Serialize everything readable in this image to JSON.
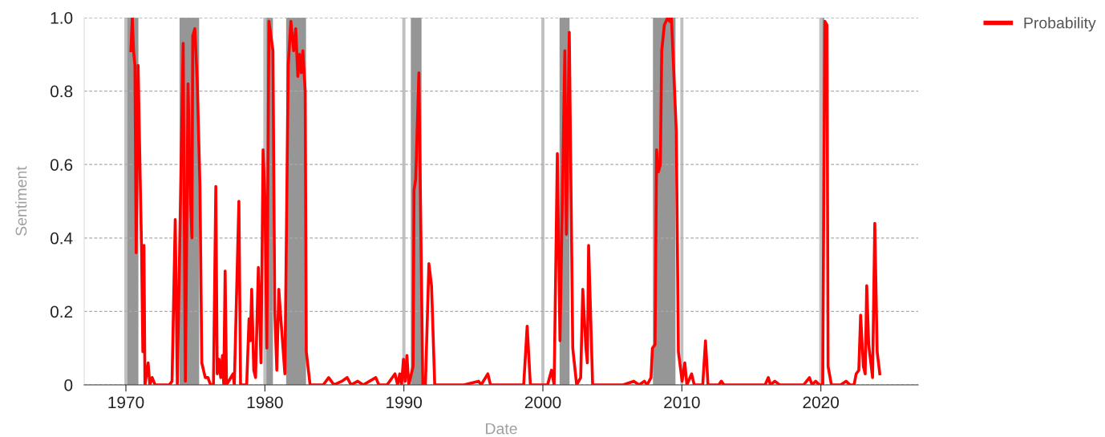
{
  "chart_data": {
    "type": "line",
    "xlabel": "Date",
    "ylabel": "Sentiment",
    "x": [
      1970.36,
      1970.46,
      1970.55,
      1970.65,
      1970.74,
      1970.88,
      1970.99,
      1971.13,
      1971.22,
      1971.3,
      1971.37,
      1971.6,
      1971.72,
      1971.89,
      1972.1,
      1973.13,
      1973.32,
      1973.55,
      1973.7,
      1974.12,
      1974.28,
      1974.47,
      1974.62,
      1974.75,
      1974.81,
      1974.96,
      1975.13,
      1975.33,
      1975.46,
      1975.71,
      1975.9,
      1976.09,
      1976.3,
      1976.47,
      1976.57,
      1976.7,
      1976.82,
      1976.95,
      1977.04,
      1977.14,
      1977.24,
      1977.71,
      1977.8,
      1978.13,
      1978.25,
      1978.5,
      1978.69,
      1978.86,
      1978.95,
      1979.05,
      1979.2,
      1979.33,
      1979.53,
      1979.72,
      1979.87,
      1980.0,
      1980.14,
      1980.29,
      1980.58,
      1980.71,
      1980.86,
      1981.0,
      1981.11,
      1981.44,
      1981.68,
      1981.87,
      1982.07,
      1982.22,
      1982.37,
      1982.49,
      1982.62,
      1982.73,
      1982.9,
      1982.98,
      1983.25,
      1983.73,
      1984.2,
      1984.59,
      1984.97,
      1985.54,
      1985.92,
      1986.2,
      1986.68,
      1987.07,
      1987.98,
      1988.2,
      1988.79,
      1989.36,
      1989.55,
      1989.7,
      1989.83,
      1989.97,
      1990.09,
      1990.22,
      1990.35,
      1990.66,
      1990.73,
      1990.85,
      1991.08,
      1991.36,
      1991.55,
      1991.8,
      1991.99,
      1992.22,
      1992.8,
      1993.56,
      1994.32,
      1995.37,
      1995.56,
      1996.04,
      1996.23,
      1997.95,
      1998.62,
      1998.87,
      1999.1,
      1999.86,
      2000.34,
      2000.62,
      2000.81,
      2001.04,
      2001.23,
      2001.58,
      2001.69,
      2001.9,
      2002.15,
      2002.43,
      2002.72,
      2002.87,
      2003.1,
      2003.2,
      2003.29,
      2003.58,
      2005.78,
      2006.54,
      2006.92,
      2007.3,
      2007.5,
      2007.78,
      2007.88,
      2008.07,
      2008.18,
      2008.31,
      2008.45,
      2008.55,
      2008.74,
      2008.98,
      2009.12,
      2009.25,
      2009.6,
      2009.75,
      2010.02,
      2010.21,
      2010.36,
      2010.7,
      2010.89,
      2011.5,
      2011.7,
      2011.88,
      2012.65,
      2012.84,
      2013.03,
      2014.18,
      2015.32,
      2015.99,
      2016.22,
      2016.37,
      2016.69,
      2017.03,
      2018.76,
      2019.18,
      2019.37,
      2019.62,
      2019.9,
      2020.13,
      2020.29,
      2020.44,
      2020.52,
      2020.76,
      2021.14,
      2021.43,
      2021.81,
      2022.1,
      2022.39,
      2022.54,
      2022.73,
      2022.86,
      2023.06,
      2023.19,
      2023.3,
      2023.44,
      2023.72,
      2023.88,
      2024.05,
      2024.24
    ],
    "series": [
      {
        "name": "Probability",
        "color": "#ff0000",
        "values": [
          0.91,
          1.0,
          0.91,
          0.87,
          0.36,
          0.87,
          0.64,
          0.36,
          0.09,
          0.38,
          0.0,
          0.06,
          0.0,
          0.02,
          0.0,
          0.0,
          0.01,
          0.45,
          0.0,
          0.93,
          0.01,
          0.82,
          0.54,
          0.4,
          0.95,
          0.97,
          0.83,
          0.54,
          0.06,
          0.02,
          0.02,
          0.0,
          0.0,
          0.54,
          0.03,
          0.07,
          0.02,
          0.08,
          0.0,
          0.31,
          0.0,
          0.03,
          0.0,
          0.5,
          0.0,
          0.0,
          0.0,
          0.18,
          0.12,
          0.26,
          0.04,
          0.02,
          0.32,
          0.06,
          0.64,
          0.51,
          0.1,
          0.99,
          0.91,
          0.2,
          0.04,
          0.26,
          0.2,
          0.03,
          0.87,
          0.99,
          0.91,
          0.97,
          0.84,
          0.9,
          0.85,
          0.91,
          0.8,
          0.09,
          0.0,
          0.0,
          0.0,
          0.02,
          0.0,
          0.01,
          0.02,
          0.0,
          0.01,
          0.0,
          0.02,
          0.0,
          0.0,
          0.03,
          0.0,
          0.03,
          0.0,
          0.07,
          0.01,
          0.08,
          0.0,
          0.05,
          0.53,
          0.56,
          0.85,
          0.0,
          0.0,
          0.33,
          0.27,
          0.0,
          0.0,
          0.0,
          0.0,
          0.01,
          0.0,
          0.03,
          0.0,
          0.0,
          0.0,
          0.16,
          0.0,
          0.0,
          0.0,
          0.04,
          0.0,
          0.63,
          0.12,
          0.91,
          0.41,
          0.96,
          0.1,
          0.0,
          0.02,
          0.26,
          0.1,
          0.06,
          0.38,
          0.0,
          0.0,
          0.01,
          0.0,
          0.01,
          0.0,
          0.02,
          0.1,
          0.11,
          0.64,
          0.58,
          0.6,
          0.91,
          0.98,
          1.0,
          0.99,
          1.0,
          0.69,
          0.09,
          0.01,
          0.06,
          0.0,
          0.03,
          0.0,
          0.0,
          0.12,
          0.0,
          0.0,
          0.01,
          0.0,
          0.0,
          0.0,
          0.0,
          0.02,
          0.0,
          0.01,
          0.0,
          0.0,
          0.02,
          0.0,
          0.01,
          0.0,
          0.0,
          0.99,
          0.98,
          0.05,
          0.0,
          0.0,
          0.0,
          0.01,
          0.0,
          0.0,
          0.03,
          0.04,
          0.19,
          0.05,
          0.03,
          0.27,
          0.11,
          0.02,
          0.44,
          0.09,
          0.03
        ]
      }
    ],
    "xlim": [
      1967,
      2027
    ],
    "xticks": [
      1970,
      1980,
      1990,
      2000,
      2010,
      2020
    ],
    "ylim": [
      0,
      1
    ],
    "yticks": [
      0,
      0.2,
      0.4,
      0.6,
      0.8,
      {
        "value": 1,
        "label": "1.0"
      }
    ],
    "bands": [
      {
        "axis": "x",
        "from": 1970.0,
        "to": 1970.9,
        "color": "#969696"
      },
      {
        "axis": "x",
        "from": 1973.86,
        "to": 1975.27,
        "color": "#969696"
      },
      {
        "axis": "x",
        "from": 1980.0,
        "to": 1980.58,
        "color": "#969696"
      },
      {
        "axis": "x",
        "from": 1981.53,
        "to": 1982.96,
        "color": "#969696"
      },
      {
        "axis": "x",
        "from": 1990.5,
        "to": 1991.27,
        "color": "#969696"
      },
      {
        "axis": "x",
        "from": 2001.2,
        "to": 2001.92,
        "color": "#969696"
      },
      {
        "axis": "x",
        "from": 2007.92,
        "to": 2009.54,
        "color": "#969696"
      },
      {
        "axis": "x",
        "from": 2020.08,
        "to": 2020.25,
        "color": "#969696"
      }
    ],
    "grid": true,
    "legend": "top right",
    "marker": "none",
    "line_style": "solid"
  }
}
